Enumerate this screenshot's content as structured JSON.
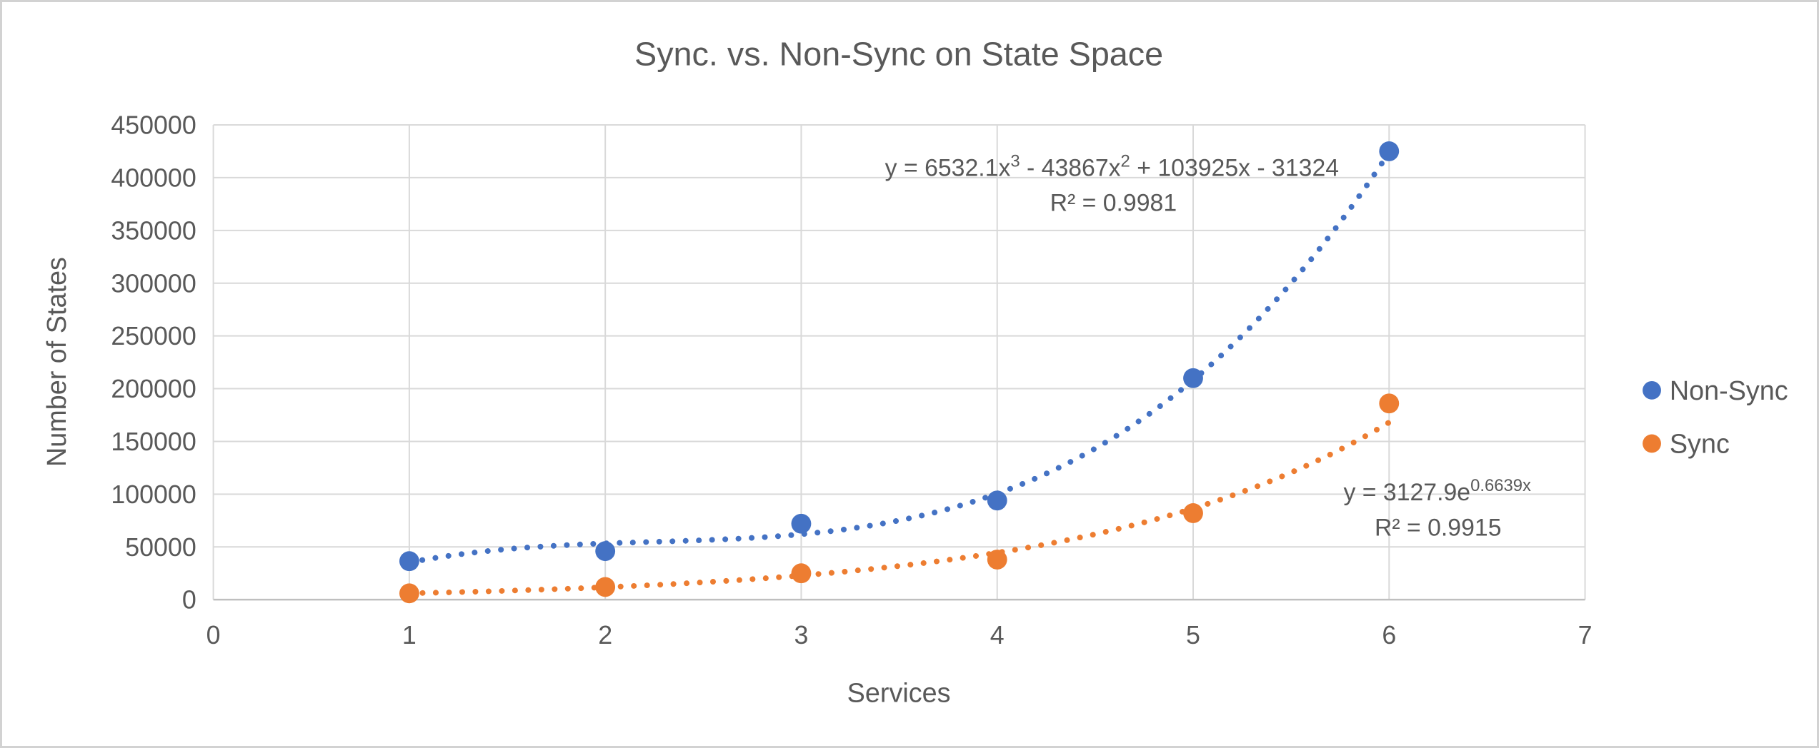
{
  "frame": {
    "background": "#FFFFFF",
    "border_color": "#D2D2D2"
  },
  "text_color": "#595959",
  "chart_data": {
    "type": "scatter",
    "title": "Sync. vs. Non-Sync on State Space",
    "xlabel": "Services",
    "ylabel": "Number of States",
    "xlim": [
      0,
      7
    ],
    "ylim": [
      0,
      450000
    ],
    "xticks": [
      0,
      1,
      2,
      3,
      4,
      5,
      6,
      7
    ],
    "xtick_labels": [
      "0",
      "1",
      "2",
      "3",
      "4",
      "5",
      "6",
      "7"
    ],
    "yticks": [
      0,
      50000,
      100000,
      150000,
      200000,
      250000,
      300000,
      350000,
      400000,
      450000
    ],
    "ytick_labels": [
      "0",
      "50000",
      "100000",
      "150000",
      "200000",
      "250000",
      "300000",
      "350000",
      "400000",
      "450000"
    ],
    "grid": true,
    "gridline_color": "#D9D9D9",
    "axis_line_color": "#BFBFBF",
    "legend_position": "right",
    "series": [
      {
        "name": "Non-Sync",
        "color": "#4472C4",
        "marker": "circle",
        "x": [
          1,
          2,
          3,
          4,
          5,
          6
        ],
        "y": [
          36500,
          46000,
          72000,
          94000,
          210000,
          425000
        ],
        "trendline": {
          "kind": "polynomial",
          "coefficients": [
            6532.1,
            -43867,
            103925,
            -31324
          ],
          "domain": [
            1,
            6
          ],
          "style": "dotted",
          "equation_parts": [
            "y = 6532.1x",
            "3",
            " - 43867x",
            "2",
            " + 103925x - 31324"
          ],
          "r_squared_label": "R² = 0.9981"
        }
      },
      {
        "name": "Sync",
        "color": "#ED7D31",
        "marker": "circle",
        "x": [
          1,
          2,
          3,
          4,
          5,
          6
        ],
        "y": [
          6000,
          12000,
          25000,
          38000,
          82000,
          186000
        ],
        "trendline": {
          "kind": "exponential",
          "a": 3127.9,
          "b": 0.6639,
          "domain": [
            1,
            6
          ],
          "style": "dotted",
          "equation_parts": [
            "y = 3127.9e",
            "0.6639x"
          ],
          "r_squared_label": "R² = 0.9915"
        }
      }
    ]
  }
}
